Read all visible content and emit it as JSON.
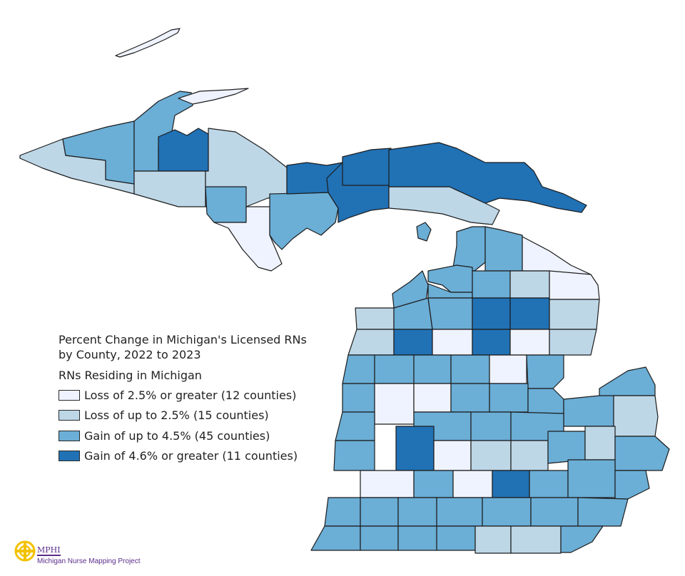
{
  "legend": {
    "title_line1": "Percent Change in Michigan's Licensed RNs",
    "title_line2": "by County, 2022 to 2023",
    "subtitle": "RNs Residing in Michigan",
    "classes": [
      {
        "label": "Loss of 2.5% or greater (12 counties)",
        "color": "#eff3ff"
      },
      {
        "label": "Loss of up to 2.5% (15 counties)",
        "color": "#bdd7e7"
      },
      {
        "label": "Gain of up to 4.5% (45 counties)",
        "color": "#6baed6"
      },
      {
        "label": "Gain of 4.6% or greater (11 counties)",
        "color": "#2171b5"
      }
    ]
  },
  "logo": {
    "name": "MPHI",
    "project": "Michigan Nurse Mapping Project",
    "color": "#5a2d8a",
    "mark_color": "#f2c200"
  },
  "map_data": {
    "region": "Michigan",
    "outline_color": "#1c1c1c"
  }
}
